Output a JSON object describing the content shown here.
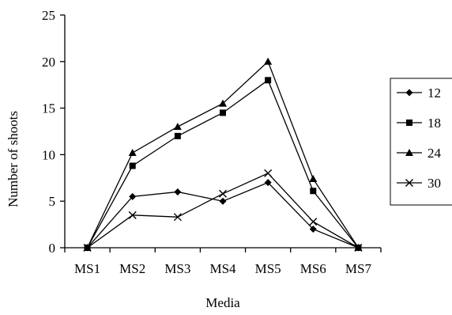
{
  "chart_data": {
    "type": "line",
    "title": "",
    "xlabel": "Media",
    "ylabel": "Number of shoots",
    "categories": [
      "MS1",
      "MS2",
      "MS3",
      "MS4",
      "MS5",
      "MS6",
      "MS7"
    ],
    "ylim": [
      0,
      25
    ],
    "yticks": [
      "0",
      "5",
      "10",
      "15",
      "20",
      "25"
    ],
    "grid": false,
    "legend_position": "right",
    "series": [
      {
        "name": "12",
        "marker": "diamond",
        "values": [
          0,
          5.5,
          6.0,
          5.0,
          7.0,
          2.0,
          0
        ]
      },
      {
        "name": "18",
        "marker": "square",
        "values": [
          0,
          8.8,
          12.0,
          14.5,
          18.0,
          6.1,
          0
        ]
      },
      {
        "name": "24",
        "marker": "triangle",
        "values": [
          0,
          10.2,
          13.0,
          15.5,
          20.0,
          7.4,
          0
        ]
      },
      {
        "name": "30",
        "marker": "x",
        "values": [
          0,
          3.5,
          3.3,
          5.8,
          8.0,
          2.8,
          0
        ]
      }
    ]
  }
}
